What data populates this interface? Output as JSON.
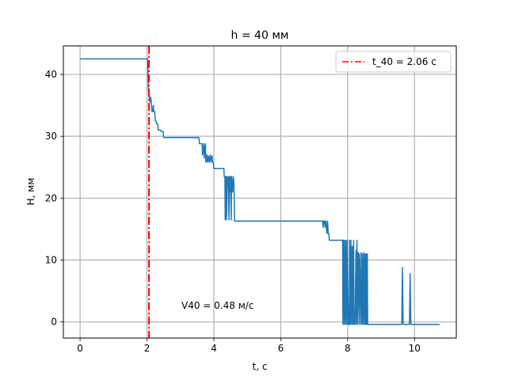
{
  "chart_data": {
    "type": "line",
    "title": "h = 40 мм",
    "xlabel": "t, c",
    "ylabel": "H, мм",
    "xlim": [
      -0.5,
      11.25
    ],
    "ylim": [
      -2.6,
      44.6
    ],
    "xticks": [
      0,
      2,
      4,
      6,
      8,
      10
    ],
    "xtick_labels": [
      "0",
      "2",
      "4",
      "6",
      "8",
      "10"
    ],
    "yticks": [
      0,
      10,
      20,
      30,
      40
    ],
    "ytick_labels": [
      "0",
      "10",
      "20",
      "30",
      "40"
    ],
    "grid": true,
    "legend_position": "top-right",
    "annotation": "V40 = 0.48 м/с",
    "vline": {
      "x": 2.06,
      "label": "t_40 = 2.06 с",
      "color": "#ff0000",
      "style": "dash-dot"
    },
    "series": [
      {
        "color": "#1f77b4",
        "x": [
          0,
          2.02,
          2.04,
          2.06,
          2.08,
          2.09,
          2.11,
          2.13,
          2.15,
          2.17,
          2.19,
          2.2,
          2.23,
          2.25,
          2.27,
          2.29,
          2.32,
          2.34,
          2.4,
          2.42,
          2.48,
          2.5,
          2.55,
          2.57,
          2.62,
          3.55,
          3.57,
          3.6,
          3.65,
          3.66,
          3.7,
          3.71,
          3.75,
          3.76,
          3.8,
          3.81,
          3.85,
          3.86,
          3.9,
          3.91,
          3.95,
          3.96,
          3.98,
          4.0,
          4.02,
          4.04,
          4.05,
          4.3,
          4.31,
          4.33,
          4.34,
          4.36,
          4.38,
          4.4,
          4.41,
          4.43,
          4.45,
          4.47,
          4.48,
          4.5,
          4.52,
          4.53,
          4.56,
          4.58,
          4.6,
          4.62,
          4.63,
          4.65,
          4.66,
          7.25,
          7.27,
          7.29,
          7.31,
          7.33,
          7.35,
          7.38,
          7.4,
          7.42,
          7.44,
          7.45,
          7.8,
          7.85,
          7.86,
          7.88,
          7.9,
          7.91,
          7.94,
          7.95,
          7.98,
          7.99,
          8.02,
          8.05,
          8.06,
          8.08,
          8.1,
          8.12,
          8.14,
          8.15,
          8.18,
          8.19,
          8.22,
          8.25,
          8.26,
          8.28,
          8.3,
          8.32,
          8.35,
          8.36,
          8.4,
          8.41,
          8.44,
          8.45,
          8.48,
          8.49,
          8.52,
          8.53,
          8.55,
          8.56,
          8.58,
          8.59,
          8.6,
          9.62,
          9.64,
          9.66,
          9.85,
          9.87,
          9.89,
          10.75
        ],
        "y": [
          42.5,
          42.5,
          38.0,
          36.3,
          36.3,
          35.5,
          36.3,
          35.5,
          34.0,
          34.0,
          35.0,
          34.0,
          34.0,
          32.5,
          32.5,
          32.0,
          32.0,
          31.0,
          31.0,
          30.8,
          30.8,
          29.8,
          29.8,
          29.8,
          29.8,
          29.8,
          28.8,
          28.8,
          28.8,
          27.0,
          28.8,
          26.5,
          28.8,
          25.8,
          27.0,
          25.8,
          26.8,
          25.8,
          27.0,
          25.8,
          26.8,
          25.8,
          25.8,
          24.8,
          24.8,
          24.8,
          24.8,
          24.8,
          23.5,
          23.5,
          16.5,
          23.5,
          16.5,
          23.5,
          22.0,
          23.5,
          16.5,
          23.5,
          21.0,
          23.5,
          16.5,
          23.5,
          21.0,
          23.5,
          22.5,
          16.3,
          16.3,
          16.3,
          16.3,
          16.3,
          15.3,
          16.3,
          16.3,
          15.3,
          16.3,
          14.3,
          16.3,
          14.3,
          14.3,
          13.2,
          13.2,
          13.2,
          -0.4,
          13.2,
          -0.4,
          13.2,
          -0.4,
          13.2,
          -0.4,
          13.2,
          -0.4,
          -0.4,
          13.2,
          -0.4,
          13.2,
          -0.4,
          12.2,
          -0.4,
          13.2,
          -0.4,
          -0.4,
          11.5,
          -0.4,
          13.2,
          -0.4,
          11.2,
          -0.4,
          11.0,
          -0.4,
          11.2,
          -0.4,
          11.0,
          -0.4,
          11.2,
          -0.4,
          11.0,
          -0.4,
          11.0,
          -0.4,
          11.0,
          -0.4,
          -0.4,
          8.8,
          -0.4,
          -0.4,
          7.8,
          -0.4,
          -0.4
        ]
      }
    ]
  }
}
